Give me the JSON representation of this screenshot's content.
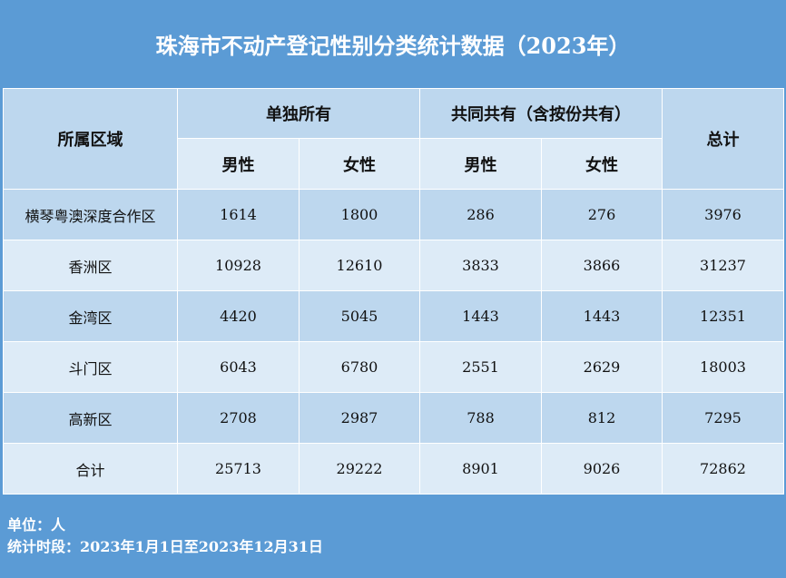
{
  "title": "珠海市不动产登记性别分类统计数据（2023年）",
  "header": {
    "region": "所属区域",
    "sole": "单独所有",
    "joint": "共同共有（含按份共有）",
    "total": "总计",
    "male": "男性",
    "female": "女性"
  },
  "rows": [
    {
      "region": "横琴粤澳深度合作区",
      "sole_male": "1614",
      "sole_female": "1800",
      "joint_male": "286",
      "joint_female": "276",
      "total": "3976"
    },
    {
      "region": "香洲区",
      "sole_male": "10928",
      "sole_female": "12610",
      "joint_male": "3833",
      "joint_female": "3866",
      "total": "31237"
    },
    {
      "region": "金湾区",
      "sole_male": "4420",
      "sole_female": "5045",
      "joint_male": "1443",
      "joint_female": "1443",
      "total": "12351"
    },
    {
      "region": "斗门区",
      "sole_male": "6043",
      "sole_female": "6780",
      "joint_male": "2551",
      "joint_female": "2629",
      "total": "18003"
    },
    {
      "region": "高新区",
      "sole_male": "2708",
      "sole_female": "2987",
      "joint_male": "788",
      "joint_female": "812",
      "total": "7295"
    },
    {
      "region": "合计",
      "sole_male": "25713",
      "sole_female": "29222",
      "joint_male": "8901",
      "joint_female": "9026",
      "total": "72862"
    }
  ],
  "footer": {
    "unit": "单位：人",
    "period": "统计时段：2023年1月1日至2023年12月31日"
  },
  "colors": {
    "frame": "#5b9bd5",
    "header_cell": "#bdd7ee",
    "light_cell": "#ddebf7"
  }
}
